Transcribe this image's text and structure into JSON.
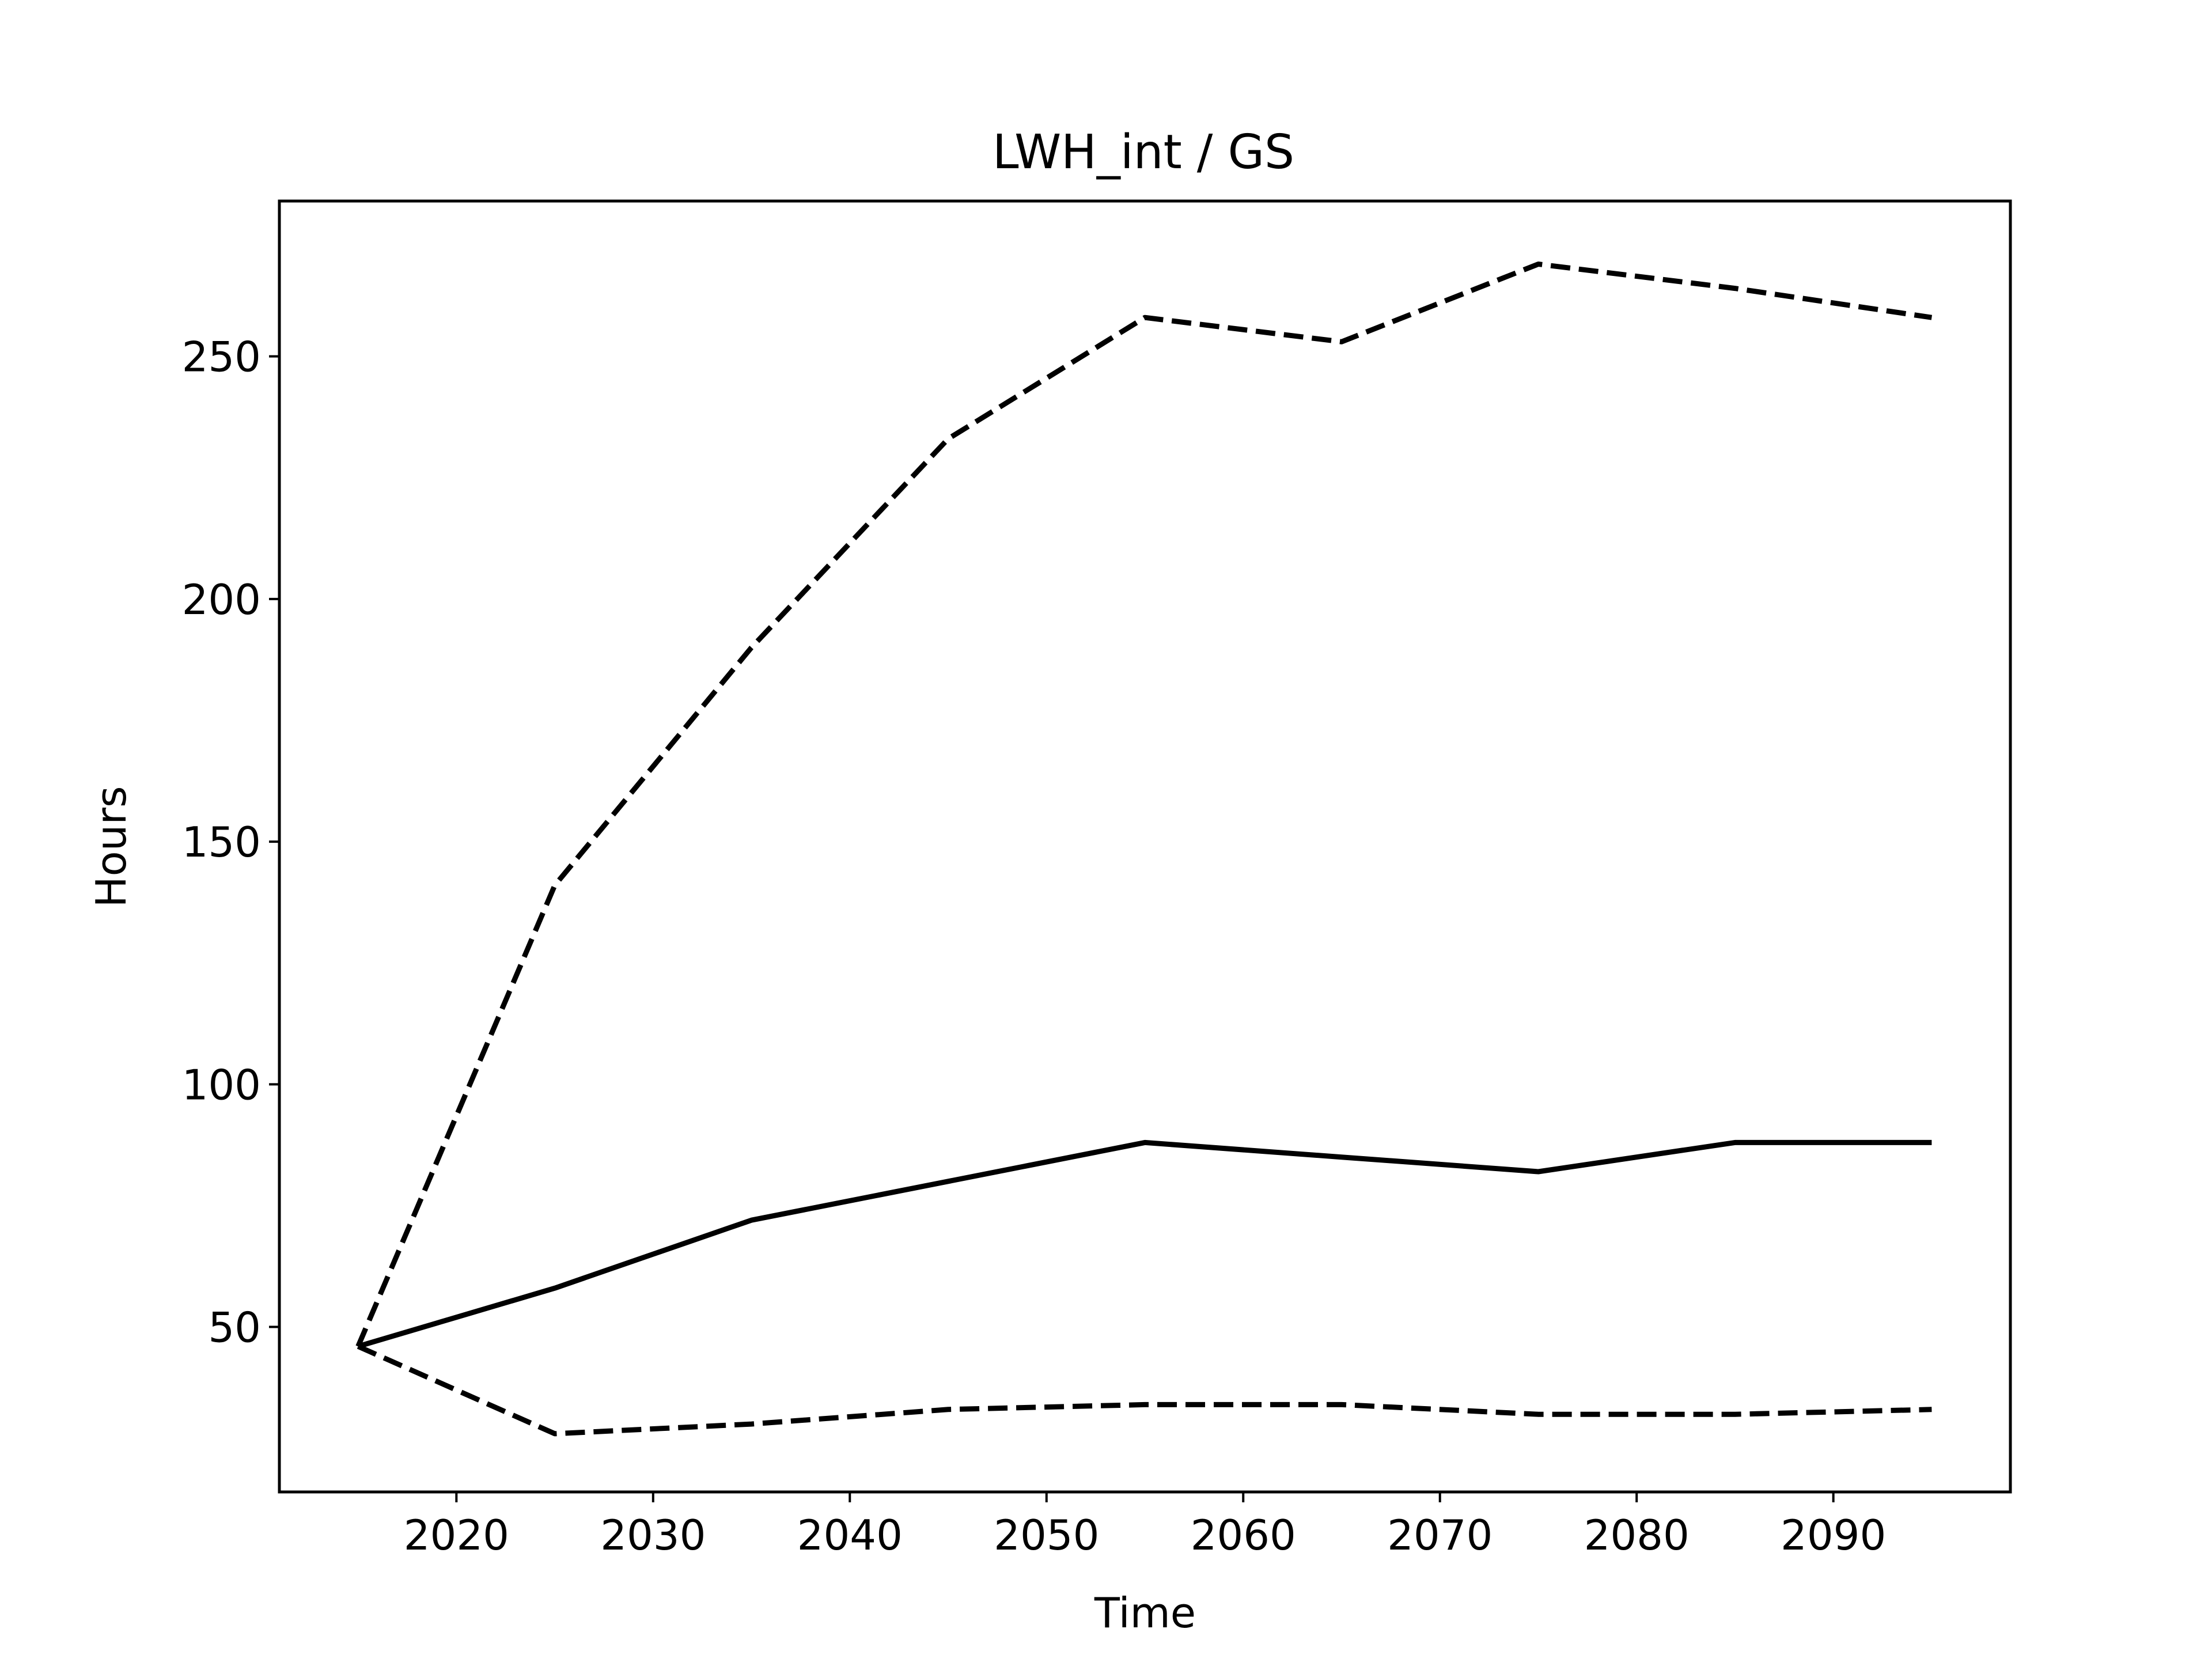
{
  "chart_data": {
    "type": "line",
    "title": "LWH_int / GS",
    "xlabel": "Time",
    "ylabel": "Hours",
    "xlim": [
      2011,
      2099
    ],
    "ylim": [
      16,
      282
    ],
    "xticks": [
      2020,
      2030,
      2040,
      2050,
      2060,
      2070,
      2080,
      2090
    ],
    "yticks": [
      50,
      100,
      150,
      200,
      250
    ],
    "grid": false,
    "legend": "none",
    "x": [
      2015,
      2025,
      2035,
      2045,
      2055,
      2065,
      2075,
      2085,
      2095
    ],
    "series": [
      {
        "style": "dashed",
        "color": "#000000",
        "values": [
          46,
          141,
          190,
          233,
          258,
          253,
          269,
          264,
          258
        ]
      },
      {
        "style": "solid",
        "color": "#000000",
        "values": [
          46,
          58,
          72,
          80,
          88,
          85,
          82,
          88,
          88
        ]
      },
      {
        "style": "dashed",
        "color": "#000000",
        "values": [
          46,
          28,
          30,
          33,
          34,
          34,
          32,
          32,
          33
        ]
      }
    ]
  }
}
